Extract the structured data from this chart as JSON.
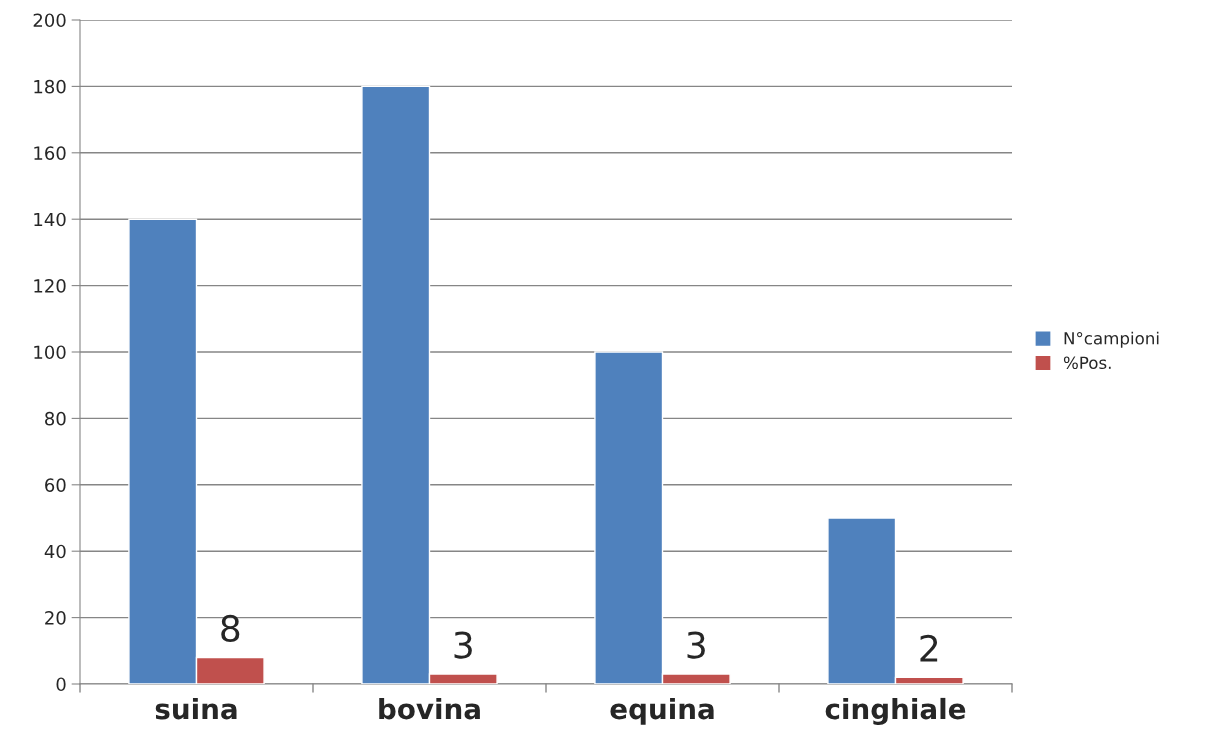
{
  "chart_data": {
    "type": "bar",
    "categories": [
      "suina",
      "bovina",
      "equina",
      "cinghiale"
    ],
    "series": [
      {
        "name": "N°campioni",
        "color": "#4f81bd",
        "values": [
          140,
          180,
          100,
          50
        ]
      },
      {
        "name": "%Pos.",
        "color": "#c0504d",
        "values": [
          8,
          3,
          3,
          2
        ],
        "value_labels": [
          "8",
          "3",
          "3",
          "2"
        ]
      }
    ],
    "ylim": [
      0,
      200
    ],
    "yticks": [
      0,
      20,
      40,
      60,
      80,
      100,
      120,
      140,
      160,
      180,
      200
    ],
    "grid": "y",
    "legend": "right"
  }
}
